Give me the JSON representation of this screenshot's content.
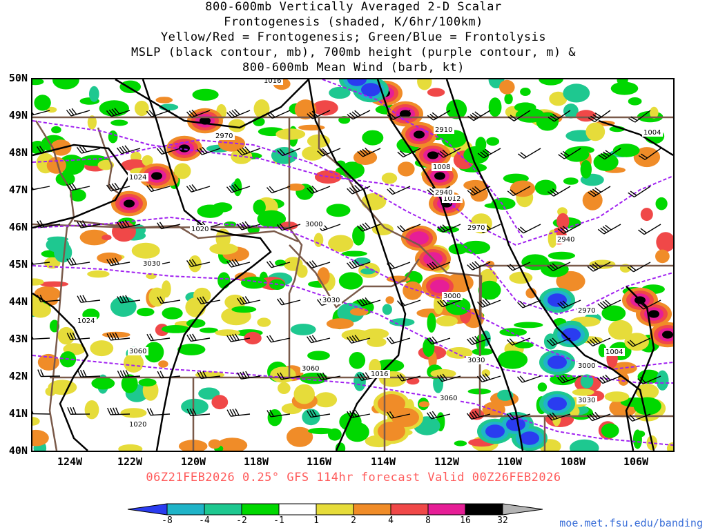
{
  "title_lines": [
    "800-600mb Vertically Averaged 2-D Scalar",
    "Frontogenesis (shaded, K/6hr/100km)",
    "Yellow/Red = Frontogenesis;  Green/Blue = Frontolysis",
    "MSLP (black contour, mb), 700mb height (purple contour, m) &",
    "800-600mb Mean Wind (barb, kt)"
  ],
  "lat_labels": [
    "50N",
    "49N",
    "48N",
    "47N",
    "46N",
    "45N",
    "44N",
    "43N",
    "42N",
    "41N",
    "40N"
  ],
  "lon_labels": [
    "124W",
    "122W",
    "120W",
    "118W",
    "116W",
    "114W",
    "112W",
    "110W",
    "108W",
    "106W"
  ],
  "valid_text": "06Z21FEB2026 0.25° GFS 114hr forecast Valid 00Z26FEB2026",
  "colorbar": {
    "labels": [
      "-8",
      "-4",
      "-2",
      "-1",
      "1",
      "2",
      "4",
      "8",
      "16",
      "32"
    ],
    "colors": [
      "#2a3cf0",
      "#1fb4c8",
      "#1ec890",
      "#00d800",
      "#ffffff",
      "#e6dc3a",
      "#f08c28",
      "#f04848",
      "#e61e96",
      "#000000",
      "#b4b4b4"
    ]
  },
  "credit": "moe.met.fsu.edu/banding",
  "contour_labels": {
    "mslp": [
      "1016",
      "1024",
      "1020",
      "1024",
      "1020",
      "1008",
      "1012",
      "1016",
      "1004",
      "1004"
    ],
    "height": [
      "2970",
      "2910",
      "2940",
      "2970",
      "3000",
      "3030",
      "3030",
      "3060",
      "3060",
      "3000",
      "3030",
      "3060",
      "2940",
      "2970",
      "3000",
      "3030"
    ]
  },
  "colors": {
    "mslp": "#000000",
    "height": "#a020f0",
    "borders": "#7a5a4a",
    "valid": "#ff5a5a",
    "credit": "#3b6fd8"
  }
}
